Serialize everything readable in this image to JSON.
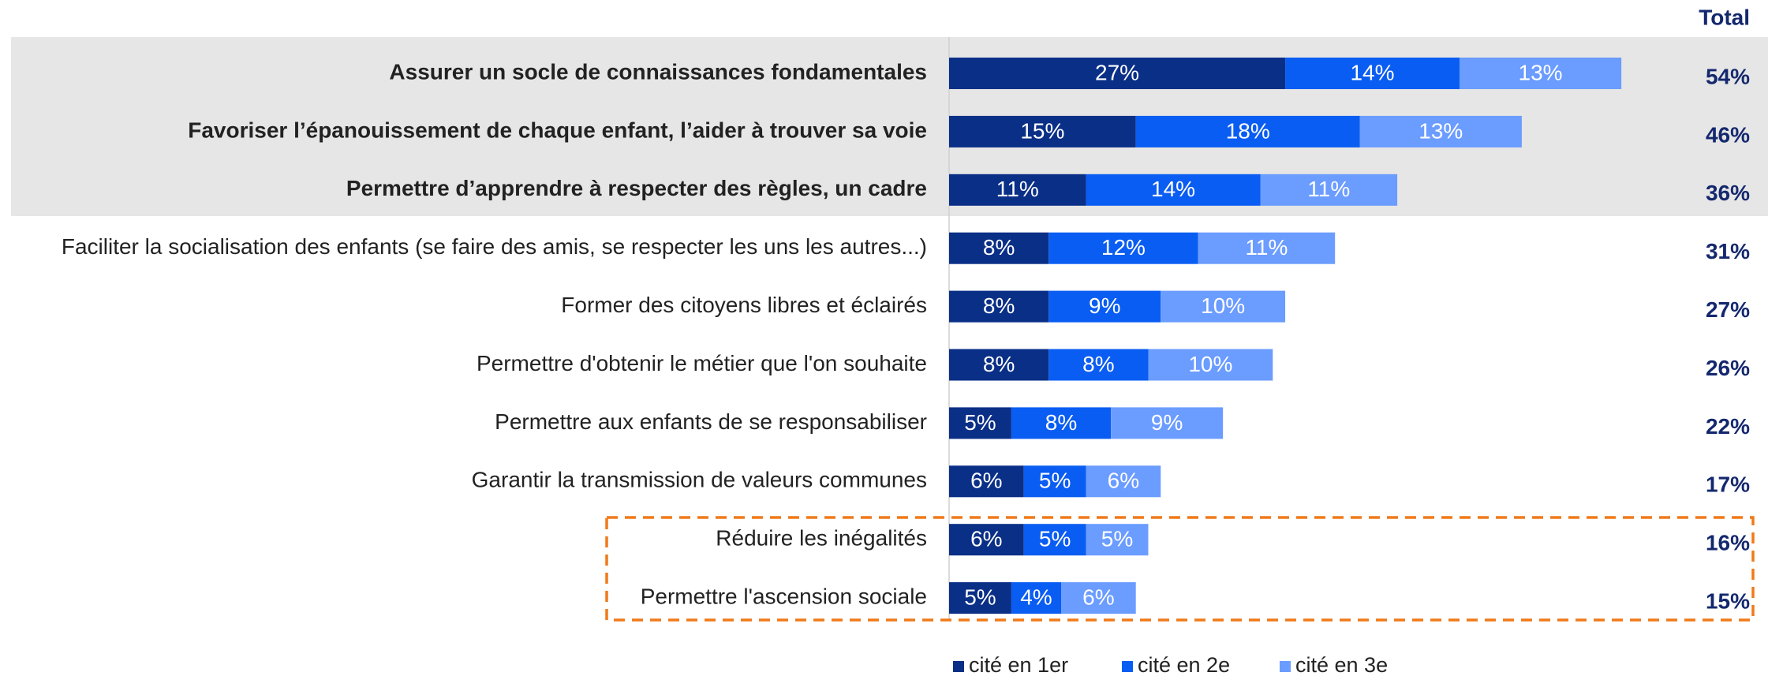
{
  "chart_data": {
    "type": "stacked-bar",
    "categories": [
      "Assurer un socle de connaissances fondamentales",
      "Favoriser l’épanouissement de chaque enfant, l’aider à trouver sa voie",
      "Permettre d’apprendre à respecter des règles, un cadre",
      "Faciliter la socialisation des enfants (se faire des amis, se respecter les uns les autres...)",
      "Former des citoyens libres et éclairés",
      "Permettre d'obtenir le métier que l'on souhaite",
      "Permettre aux enfants de se responsabiliser",
      "Garantir la transmission de valeurs communes",
      "Réduire les inégalités",
      "Permettre l'ascension sociale"
    ],
    "emphasis": [
      true,
      true,
      true,
      false,
      false,
      false,
      false,
      false,
      false,
      false
    ],
    "series": [
      {
        "name": "cité en 1er",
        "color": "#0a2f87",
        "values": [
          27,
          15,
          11,
          8,
          8,
          8,
          5,
          6,
          6,
          5
        ],
        "value_labels": [
          "27%",
          "15%",
          "11%",
          "8%",
          "8%",
          "8%",
          "5%",
          "6%",
          "6%",
          "5%"
        ]
      },
      {
        "name": "cité en 2e",
        "color": "#0a5df2",
        "values": [
          14,
          18,
          14,
          12,
          9,
          8,
          8,
          5,
          5,
          4
        ],
        "value_labels": [
          "14%",
          "18%",
          "14%",
          "12%",
          "9%",
          "8%",
          "8%",
          "5%",
          "5%",
          "4%"
        ]
      },
      {
        "name": "cité en 3e",
        "color": "#6b9cff",
        "values": [
          13,
          13,
          11,
          11,
          10,
          10,
          9,
          6,
          5,
          6
        ],
        "value_labels": [
          "13%",
          "13%",
          "11%",
          "11%",
          "10%",
          "10%",
          "9%",
          "6%",
          "5%",
          "6%"
        ]
      }
    ],
    "total": {
      "name": "Total",
      "values": [
        54,
        46,
        36,
        31,
        27,
        26,
        22,
        17,
        16,
        15
      ],
      "value_labels": [
        "54%",
        "46%",
        "36%",
        "31%",
        "27%",
        "26%",
        "22%",
        "17%",
        "16%",
        "15%"
      ]
    }
  }
}
